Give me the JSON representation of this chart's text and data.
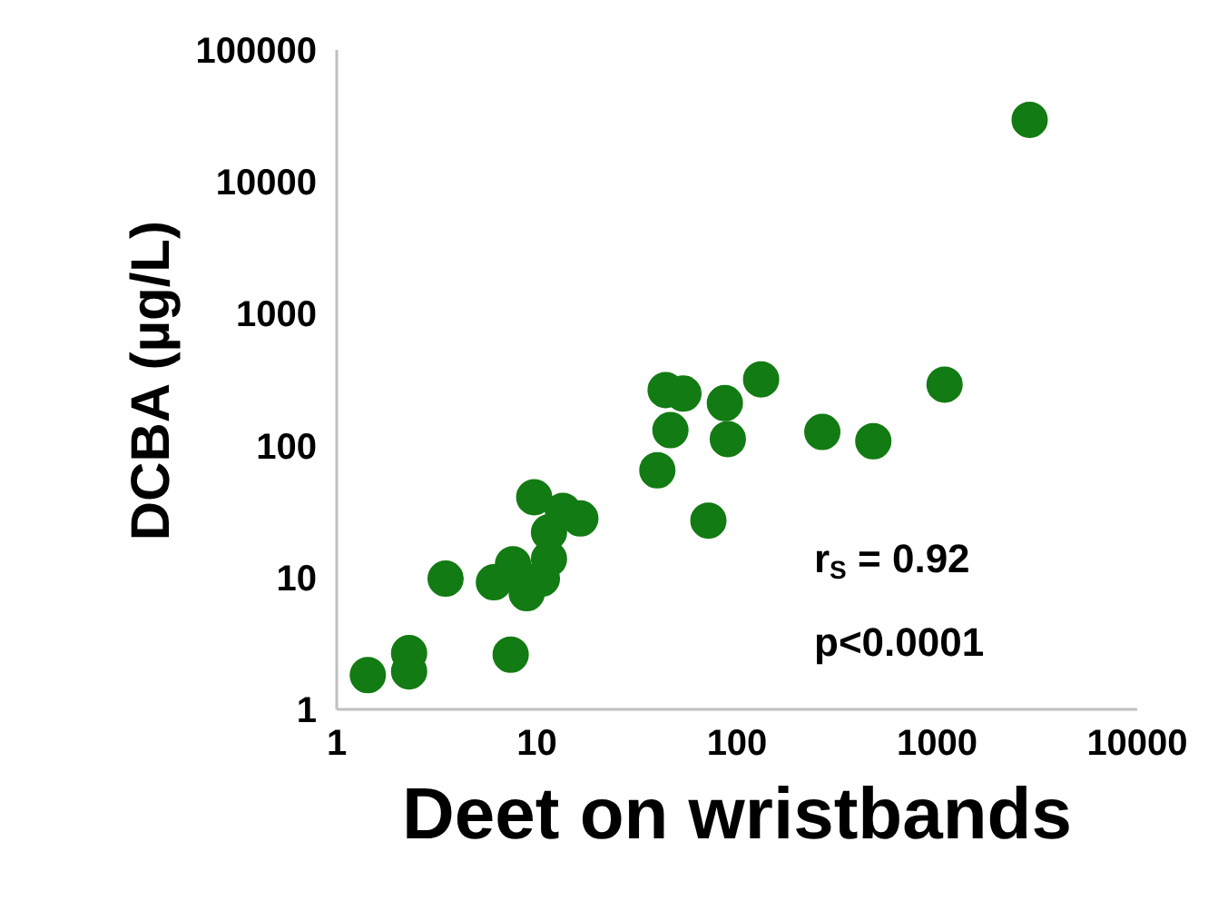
{
  "chart_data": {
    "type": "scatter",
    "xlabel": "Deet on wristbands",
    "ylabel": "DCBA (µg/L)",
    "log": "xy",
    "xlim": [
      1,
      10000
    ],
    "ylim": [
      1,
      100000
    ],
    "xticks": [
      1,
      10,
      100,
      1000,
      10000
    ],
    "yticks": [
      1,
      10,
      100,
      1000,
      10000,
      100000
    ],
    "grid": false,
    "marker": "circle",
    "series": [
      {
        "color": "#137b13",
        "x": [
          1.43,
          2.3,
          2.3,
          3.5,
          6.1,
          7.4,
          7.6,
          8.9,
          9.7,
          10.6,
          11.5,
          11.5,
          13.5,
          16.5,
          40,
          44,
          46.5,
          54,
          72,
          87,
          90,
          132,
          267,
          480,
          1090,
          2900
        ],
        "values": [
          1.82,
          2.67,
          1.94,
          9.8,
          9.2,
          2.6,
          12.6,
          7.6,
          40.6,
          9.8,
          22,
          13.8,
          32,
          28,
          65,
          264,
          131,
          248,
          27,
          210,
          112,
          318,
          127,
          108,
          290,
          29500
        ]
      }
    ],
    "annotations": [
      "r$_{S}$ = 0.92",
      "p<0.0001"
    ]
  }
}
